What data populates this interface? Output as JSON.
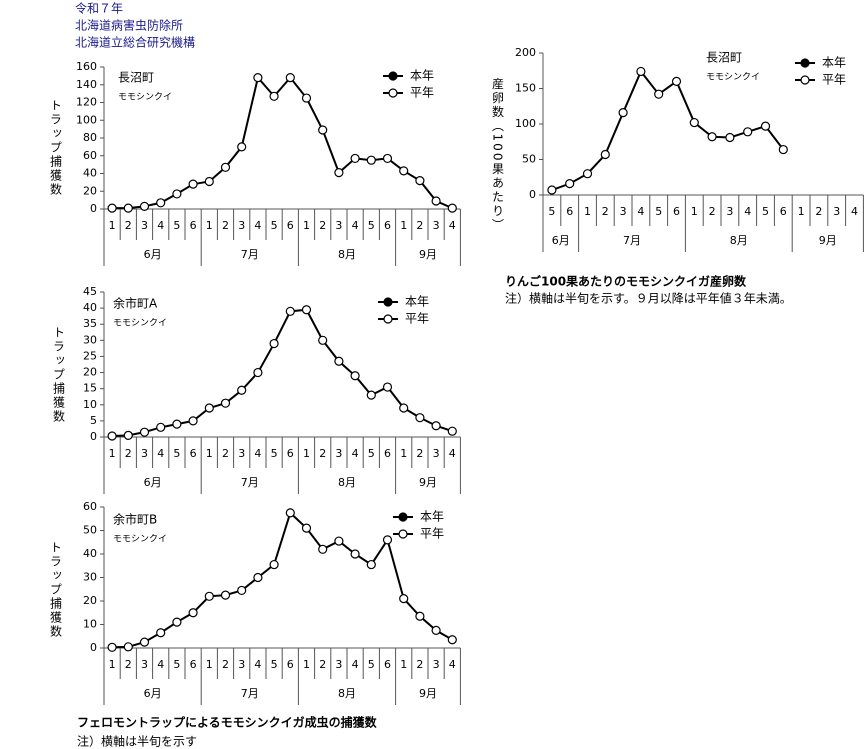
{
  "header": [
    "令和７年",
    "北海道病害虫防除所",
    "北海道立総合研究機構"
  ],
  "trap_caption": {
    "title": "フェロモントラップによるモモシンクイガ成虫の捕獲数",
    "note": "注）横軸は半旬を示す"
  },
  "egg_caption": {
    "title": "りんご100果あたりのモモシンクイガ産卵数",
    "note": "注）横軸は半旬を示す。９月以降は平年値３年未満。"
  },
  "chart_data": [
    {
      "type": "line",
      "ylabel": "トラップ捕獲数",
      "annotations": [
        "長沼町",
        "モモシンクイ"
      ],
      "months": [
        {
          "label": "6月",
          "halves": [
            "1",
            "2",
            "3",
            "4",
            "5",
            "6"
          ]
        },
        {
          "label": "7月",
          "halves": [
            "1",
            "2",
            "3",
            "4",
            "5",
            "6"
          ]
        },
        {
          "label": "8月",
          "halves": [
            "1",
            "2",
            "3",
            "4",
            "5",
            "6"
          ]
        },
        {
          "label": "9月",
          "halves": [
            "1",
            "2",
            "3",
            "4"
          ]
        }
      ],
      "ylim": [
        0,
        160
      ],
      "yticks": [
        0,
        20,
        40,
        60,
        80,
        100,
        120,
        140,
        160
      ],
      "series": [
        {
          "name": "本年",
          "color": "#000000",
          "marker": "filled",
          "values": [
            null,
            null,
            null,
            null,
            null,
            null,
            null,
            null,
            null,
            null,
            null,
            null,
            null,
            null,
            null,
            null,
            null,
            null,
            null,
            null,
            null,
            null
          ]
        },
        {
          "name": "平年",
          "color": "#000000",
          "marker": "open",
          "values": [
            1,
            1,
            3,
            7,
            17,
            28,
            31,
            47,
            70,
            148,
            127,
            148,
            125,
            89,
            41,
            57,
            55,
            57,
            43,
            32,
            9,
            1
          ]
        }
      ]
    },
    {
      "type": "line",
      "ylabel": "トラップ捕獲数",
      "annotations": [
        "余市町A",
        "モモシンクイ"
      ],
      "months": [
        {
          "label": "6月",
          "halves": [
            "1",
            "2",
            "3",
            "4",
            "5",
            "6"
          ]
        },
        {
          "label": "7月",
          "halves": [
            "1",
            "2",
            "3",
            "4",
            "5",
            "6"
          ]
        },
        {
          "label": "8月",
          "halves": [
            "1",
            "2",
            "3",
            "4",
            "5",
            "6"
          ]
        },
        {
          "label": "9月",
          "halves": [
            "1",
            "2",
            "3",
            "4"
          ]
        }
      ],
      "ylim": [
        0,
        45
      ],
      "yticks": [
        0,
        5,
        10,
        15,
        20,
        25,
        30,
        35,
        40,
        45
      ],
      "series": [
        {
          "name": "本年",
          "color": "#000000",
          "marker": "filled",
          "values": [
            null,
            null,
            null,
            null,
            null,
            null,
            null,
            null,
            null,
            null,
            null,
            null,
            null,
            null,
            null,
            null,
            null,
            null,
            null,
            null,
            null,
            null
          ]
        },
        {
          "name": "平年",
          "color": "#000000",
          "marker": "open",
          "values": [
            0.3,
            0.5,
            1.5,
            3,
            4,
            5,
            9,
            10.5,
            14.5,
            20,
            29,
            39,
            39.5,
            30,
            23.5,
            19,
            13,
            15.5,
            9,
            6,
            3.5,
            1.8
          ]
        }
      ]
    },
    {
      "type": "line",
      "ylabel": "トラップ捕獲数",
      "annotations": [
        "余市町B",
        "モモシンクイ"
      ],
      "months": [
        {
          "label": "6月",
          "halves": [
            "1",
            "2",
            "3",
            "4",
            "5",
            "6"
          ]
        },
        {
          "label": "7月",
          "halves": [
            "1",
            "2",
            "3",
            "4",
            "5",
            "6"
          ]
        },
        {
          "label": "8月",
          "halves": [
            "1",
            "2",
            "3",
            "4",
            "5",
            "6"
          ]
        },
        {
          "label": "9月",
          "halves": [
            "1",
            "2",
            "3",
            "4"
          ]
        }
      ],
      "ylim": [
        0,
        60
      ],
      "yticks": [
        0,
        10,
        20,
        30,
        40,
        50,
        60
      ],
      "series": [
        {
          "name": "本年",
          "color": "#000000",
          "marker": "filled",
          "values": [
            null,
            null,
            null,
            null,
            null,
            null,
            null,
            null,
            null,
            null,
            null,
            null,
            null,
            null,
            null,
            null,
            null,
            null,
            null,
            null,
            null,
            null
          ]
        },
        {
          "name": "平年",
          "color": "#000000",
          "marker": "open",
          "values": [
            0.3,
            0.5,
            2.5,
            6.5,
            11,
            15,
            22,
            22.5,
            24.5,
            30,
            35.5,
            57.5,
            51,
            42,
            45.5,
            40,
            35.5,
            46,
            21,
            13.5,
            7.5,
            3.5
          ]
        }
      ]
    },
    {
      "type": "line",
      "ylabel": "産卵数（100果あたり）",
      "annotations": [
        "長沼町",
        "モモシンクイ"
      ],
      "months": [
        {
          "label": "6月",
          "halves": [
            "5",
            "6"
          ]
        },
        {
          "label": "7月",
          "halves": [
            "1",
            "2",
            "3",
            "4",
            "5",
            "6"
          ]
        },
        {
          "label": "8月",
          "halves": [
            "1",
            "2",
            "3",
            "4",
            "5",
            "6"
          ]
        },
        {
          "label": "9月",
          "halves": [
            "1",
            "2",
            "3",
            "4"
          ]
        }
      ],
      "ylim": [
        0,
        200
      ],
      "yticks": [
        0,
        50,
        100,
        150,
        200
      ],
      "series": [
        {
          "name": "本年",
          "color": "#000000",
          "marker": "filled",
          "values": [
            null,
            null,
            null,
            null,
            null,
            null,
            null,
            null,
            null,
            null,
            null,
            null,
            null,
            null,
            null,
            null,
            null,
            null
          ]
        },
        {
          "name": "平年",
          "color": "#000000",
          "marker": "open",
          "values": [
            7,
            16,
            30,
            57,
            116,
            174,
            142,
            160,
            102,
            82,
            81,
            89,
            97,
            64,
            null,
            null,
            null,
            null
          ]
        }
      ]
    }
  ]
}
